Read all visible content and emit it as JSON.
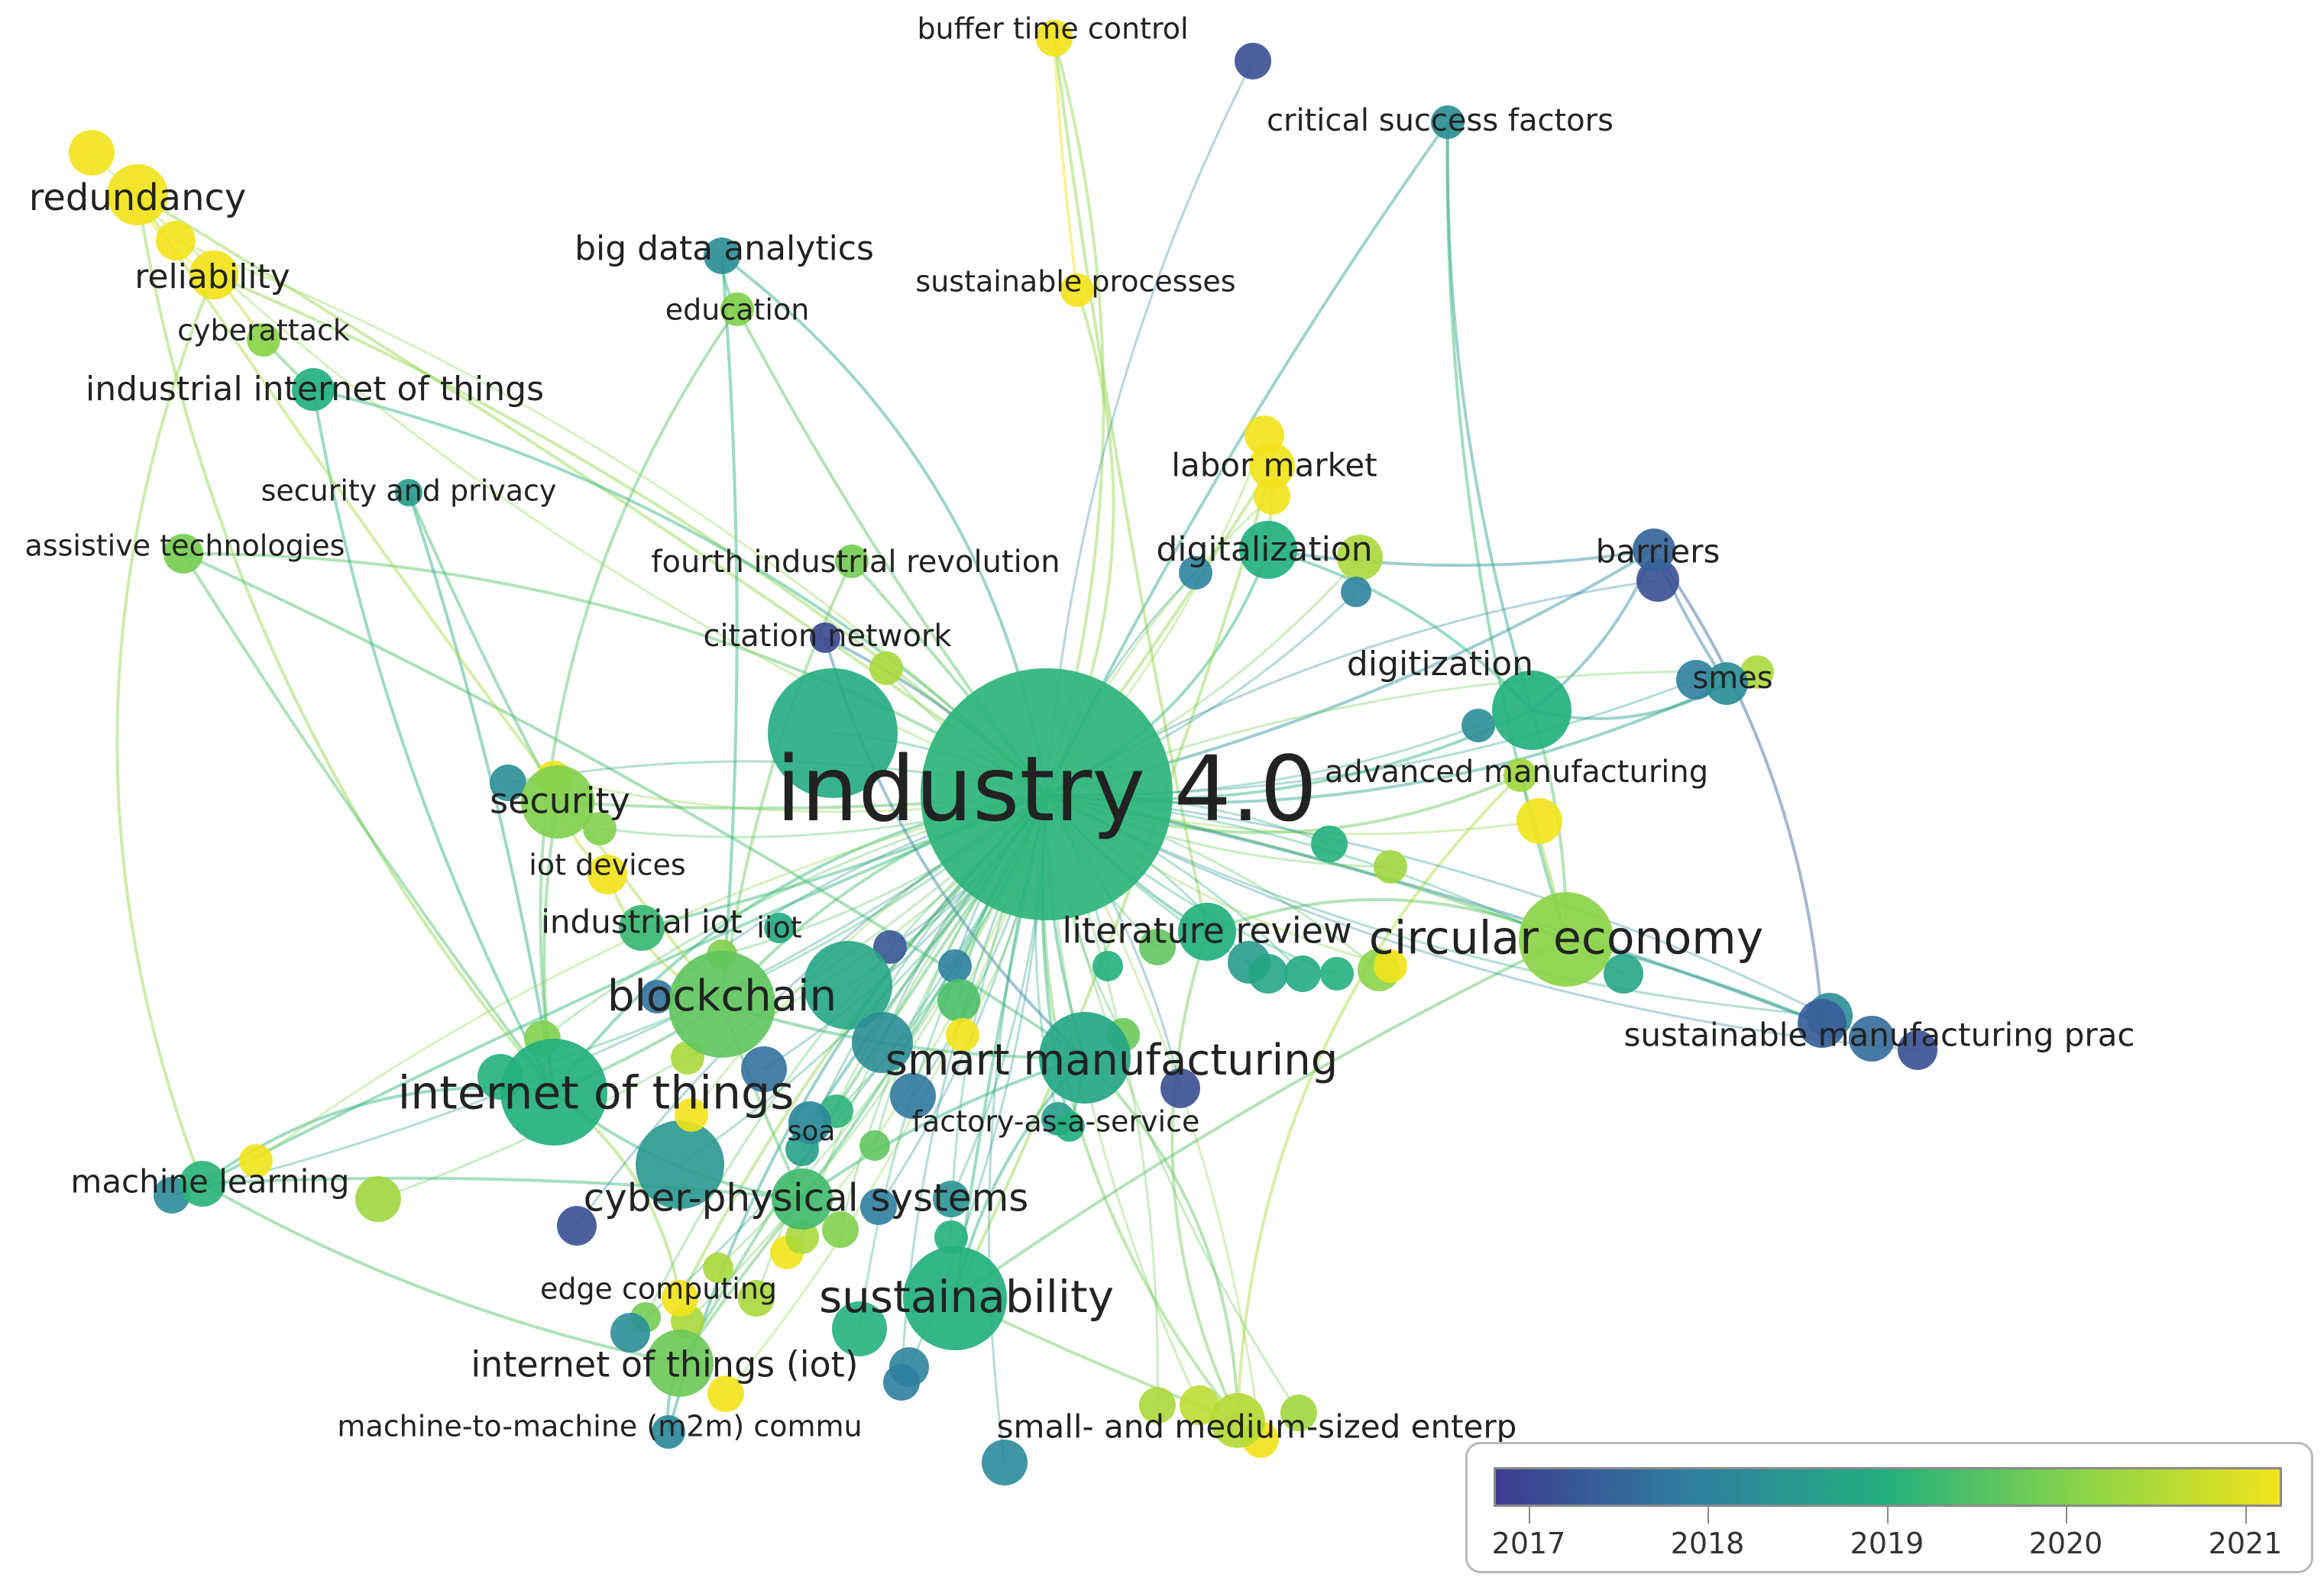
{
  "colors": {
    "year_2017": "#3e3b8f",
    "year_2018": "#2f7fa0",
    "year_2019": "#23b07e",
    "year_2020": "#8bd448",
    "year_2021": "#f2e31b"
  },
  "network": {
    "nodes": [
      {
        "id": "industry40",
        "label": "industry 4.0",
        "weight": 100,
        "year": 2019.1
      },
      {
        "id": "circular",
        "label": "circular economy",
        "weight": 28,
        "year": 2020.0
      },
      {
        "id": "sustainability",
        "label": "sustainability",
        "weight": 22,
        "year": 2019.0
      },
      {
        "id": "smartman",
        "label": "smart manufacturing",
        "weight": 18,
        "year": 2018.8
      },
      {
        "id": "blockchain",
        "label": "blockchain",
        "weight": 18,
        "year": 2019.6
      },
      {
        "id": "iot",
        "label": "internet of things",
        "weight": 22,
        "year": 2019.0
      },
      {
        "id": "cps",
        "label": "cyber-physical systems",
        "weight": 10,
        "year": 2019.3
      },
      {
        "id": "iotiot",
        "label": "internet of things (iot)",
        "weight": 10,
        "year": 2019.7
      },
      {
        "id": "litreview",
        "label": "literature review",
        "weight": 10,
        "year": 2019.0
      },
      {
        "id": "digitization",
        "label": "digitization",
        "weight": 12,
        "year": 2019.0
      },
      {
        "id": "digitalization",
        "label": "digitalization",
        "weight": 8,
        "year": 2019.0
      },
      {
        "id": "security",
        "label": "security",
        "weight": 10,
        "year": 2019.9
      },
      {
        "id": "redundancy",
        "label": "redundancy",
        "weight": 7,
        "year": 2021.0
      },
      {
        "id": "reliability",
        "label": "reliability",
        "weight": 6,
        "year": 2021.0
      },
      {
        "id": "cyberattack",
        "label": "cyberattack",
        "weight": 4,
        "year": 2020.0
      },
      {
        "id": "iiot_long",
        "label": "industrial internet of things",
        "weight": 5,
        "year": 2019.0
      },
      {
        "id": "secpriv",
        "label": "security and privacy",
        "weight": 3,
        "year": 2018.6
      },
      {
        "id": "assistive",
        "label": "assistive technologies",
        "weight": 5,
        "year": 2019.8
      },
      {
        "id": "bigdata",
        "label": "big data analytics",
        "weight": 5,
        "year": 2018.3
      },
      {
        "id": "education",
        "label": "education",
        "weight": 4,
        "year": 2019.9
      },
      {
        "id": "fourth",
        "label": "fourth industrial revolution",
        "weight": 4,
        "year": 2019.8
      },
      {
        "id": "citation",
        "label": "citation network",
        "weight": 4,
        "year": 2017.2
      },
      {
        "id": "buffer",
        "label": "buffer time control",
        "weight": 4,
        "year": 2021.0
      },
      {
        "id": "sustproc",
        "label": "sustainable processes",
        "weight": 3,
        "year": 2021.0
      },
      {
        "id": "csf",
        "label": "critical success factors",
        "weight": 4,
        "year": 2018.3
      },
      {
        "id": "labor",
        "label": "labor market",
        "weight": 5,
        "year": 2021.0
      },
      {
        "id": "barriers",
        "label": "barriers",
        "weight": 6,
        "year": 2017.6
      },
      {
        "id": "smes",
        "label": "smes",
        "weight": 5,
        "year": 2018.3
      },
      {
        "id": "advman",
        "label": "advanced manufacturing",
        "weight": 4,
        "year": 2020.2
      },
      {
        "id": "smp",
        "label": "sustainable manufacturing prac",
        "weight": 5,
        "year": 2017.5
      },
      {
        "id": "iotdev",
        "label": "iot devices",
        "weight": 4,
        "year": 2021.0
      },
      {
        "id": "industrialiot",
        "label": "industrial iot",
        "weight": 5,
        "year": 2019.2
      },
      {
        "id": "iiot",
        "label": "iiot",
        "weight": 3,
        "year": 2018.9
      },
      {
        "id": "soa",
        "label": "soa",
        "weight": 6,
        "year": 2018.2
      },
      {
        "id": "faas",
        "label": "factory-as-a-service",
        "weight": 3,
        "year": 2019.0
      },
      {
        "id": "ml",
        "label": "machine learning",
        "weight": 4,
        "year": 2019.1
      },
      {
        "id": "edge",
        "label": "edge computing",
        "weight": 4,
        "year": 2021.0
      },
      {
        "id": "m2m",
        "label": "machine-to-machine (m2m) commu",
        "weight": 3,
        "year": 2018.2
      },
      {
        "id": "sme_long",
        "label": "small- and medium-sized enterp",
        "weight": 5,
        "year": 2020.4
      }
    ]
  },
  "legend": {
    "ticks": [
      "2017",
      "2018",
      "2019",
      "2020",
      "2021"
    ]
  }
}
